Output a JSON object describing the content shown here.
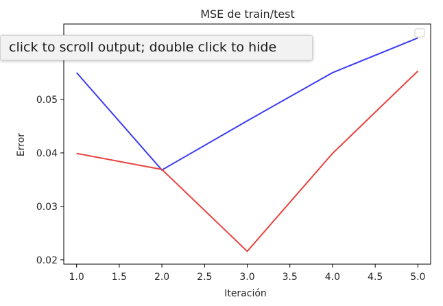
{
  "tooltip": {
    "text": "click to scroll output; double click to hide"
  },
  "chart_data": {
    "type": "line",
    "title": "MSE de train/test",
    "xlabel": "Iteración",
    "ylabel": "Error",
    "x": [
      1.0,
      2.0,
      3.0,
      4.0,
      5.0
    ],
    "xlim": [
      0.85,
      5.15
    ],
    "ylim": [
      0.0192,
      0.0641
    ],
    "xticks": [
      "1.0",
      "1.5",
      "2.0",
      "2.5",
      "3.0",
      "3.5",
      "4.0",
      "4.5",
      "5.0"
    ],
    "yticks": [
      "0.02",
      "0.03",
      "0.04",
      "0.05"
    ],
    "grid": false,
    "legend": "top-right",
    "series": [
      {
        "color": "#3b3bf5",
        "values": [
          0.055,
          0.0368,
          0.046,
          0.055,
          0.0615
        ]
      },
      {
        "color": "#e8413c",
        "values": [
          0.0399,
          0.0369,
          0.0216,
          0.0399,
          0.0553
        ]
      }
    ]
  }
}
